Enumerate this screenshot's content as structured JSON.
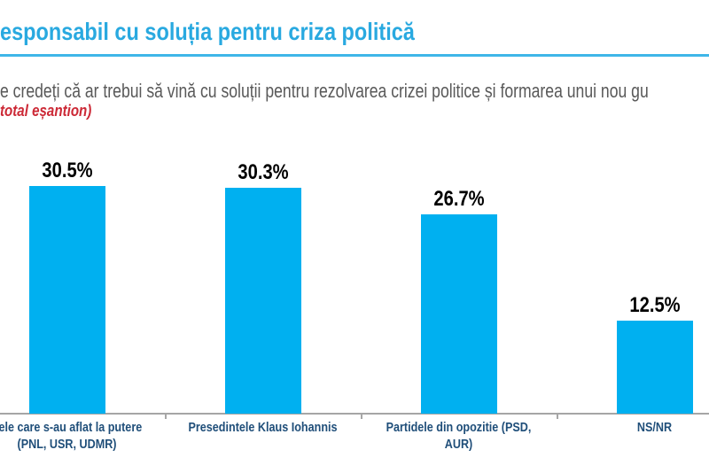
{
  "header": {
    "title": "esponsabil cu soluția pentru criza politică",
    "title_color": "#29A9E0",
    "rule_color": "#3FB6E8"
  },
  "question": {
    "text": "e credeți că ar trebui să vină cu soluții pentru rezolvarea crizei politice și formarea unui nou gu",
    "color": "#595959"
  },
  "note": {
    "text": "total eșantion)",
    "color": "#CC2936"
  },
  "chart_data": {
    "type": "bar",
    "title": "esponsabil cu soluția pentru criza politică",
    "categories": [
      "dele care s-au aflat la putere\n(PNL, USR, UDMR)",
      "Presedintele Klaus Iohannis",
      "Partidele din opozitie (PSD, AUR)",
      "NS/NR"
    ],
    "values": [
      30.5,
      30.3,
      26.7,
      12.5
    ],
    "value_labels": [
      "30.5%",
      "30.3%",
      "26.7%",
      "12.5%"
    ],
    "xlabel": "",
    "ylabel": "",
    "ylim": [
      0,
      33
    ],
    "grid": false,
    "legend": false,
    "bar_color": "#00B0F0",
    "value_label_color": "#000000",
    "category_label_color": "#1F4E79",
    "axis_color": "#A6A6A6"
  }
}
